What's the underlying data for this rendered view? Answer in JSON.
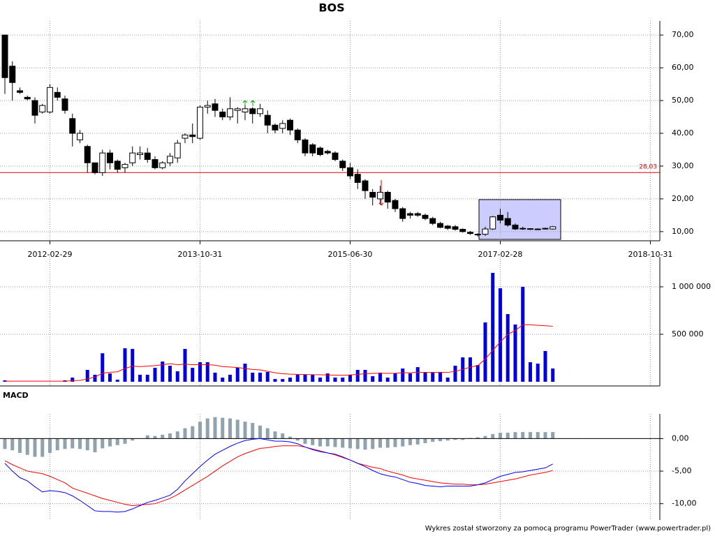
{
  "chart_data": [
    {
      "type": "candlestick",
      "title": "BOS",
      "open": [
        70,
        60.5,
        53,
        51,
        50,
        46.5,
        46.5,
        52.5,
        50.5,
        44.5,
        38,
        36,
        31,
        28,
        34,
        31.5,
        29.5,
        31,
        33.5,
        34,
        32,
        29.5,
        31,
        32.5,
        38.5,
        39.5,
        38.5,
        48,
        49,
        46.5,
        45,
        47,
        46.5,
        47.5,
        46,
        45.5,
        42.5,
        41.5,
        44,
        41,
        38,
        36.5,
        35.5,
        34.5,
        34,
        31.5,
        29.5,
        27.5,
        25.5,
        22,
        20,
        22,
        19.5,
        17,
        15.5,
        15.5,
        15,
        14,
        12.5,
        11.7,
        11.5,
        10.7,
        9.8,
        9.1,
        9.2,
        10.8,
        15,
        14,
        12,
        11,
        10.8,
        10.8,
        10.9,
        10.8
      ],
      "high": [
        70,
        62,
        54,
        51.5,
        51,
        49,
        55,
        54,
        51.5,
        46,
        41,
        36.5,
        31,
        35,
        35,
        32,
        31,
        36,
        36,
        35.5,
        33,
        31.5,
        34,
        38,
        40,
        43,
        48.5,
        50,
        50.5,
        47.5,
        51,
        48,
        48.5,
        48,
        49,
        47,
        43,
        44,
        44.5,
        41.5,
        38.5,
        37,
        36,
        35,
        34.5,
        32,
        31,
        29,
        26,
        23,
        24,
        22.5,
        20,
        17.5,
        16,
        16,
        15.5,
        14.5,
        13,
        12,
        12,
        11,
        10.2,
        9.5,
        11.5,
        14.8,
        17,
        16,
        12.5,
        11.5,
        11,
        11,
        11.2,
        11.7
      ],
      "low": [
        52,
        50,
        52,
        50,
        43,
        46,
        46,
        50,
        46,
        36,
        37,
        28,
        27.5,
        27,
        29,
        28,
        28,
        30,
        32,
        31,
        29,
        29,
        30,
        31,
        37,
        37,
        38,
        46,
        45,
        44,
        44,
        43,
        44,
        43,
        45,
        40,
        40,
        40,
        39.5,
        37,
        33,
        33,
        33,
        33.5,
        31.5,
        28.5,
        26,
        23,
        20,
        18,
        18.5,
        17,
        16,
        13,
        14,
        14.5,
        13.5,
        12,
        11,
        10.5,
        10.3,
        9.7,
        9,
        8.5,
        8.7,
        10.5,
        12.5,
        11.5,
        10.5,
        10.5,
        10.5,
        10.5,
        10.6,
        10.6
      ],
      "close": [
        57,
        55.5,
        52.5,
        50.5,
        45.5,
        48.5,
        54,
        51,
        47,
        40,
        40,
        31,
        28,
        34,
        31,
        29,
        30.5,
        34,
        34,
        32,
        29.5,
        31,
        33,
        37,
        39.5,
        39,
        48,
        48.5,
        47,
        45,
        47.5,
        47.5,
        47.5,
        46,
        47.5,
        42.5,
        41,
        43,
        41,
        38,
        34,
        34,
        33.5,
        34,
        32,
        29.5,
        27,
        25,
        22.5,
        20.5,
        22,
        19,
        17,
        14,
        15,
        15,
        14,
        12.5,
        11.3,
        11,
        10.7,
        10,
        9.4,
        9.2,
        10.8,
        14.5,
        13.5,
        12,
        10.8,
        11,
        10.9,
        10.7,
        11,
        11.5
      ],
      "xlim": [
        -0.65,
        87.26
      ],
      "xticks": [
        {
          "value": 6,
          "label": "2012-02-29"
        },
        {
          "value": 26,
          "label": "2013-10-31"
        },
        {
          "value": 46,
          "label": "2015-06-30"
        },
        {
          "value": 66,
          "label": "2017-02-28"
        },
        {
          "value": 86,
          "label": "2018-10-31"
        }
      ],
      "ylim": [
        7.2,
        74.3
      ],
      "yticks": [
        {
          "value": 10,
          "label": "10,00"
        },
        {
          "value": 20,
          "label": "20,00"
        },
        {
          "value": 30,
          "label": "30,00"
        },
        {
          "value": 40,
          "label": "40,00"
        },
        {
          "value": 50,
          "label": "50,00"
        },
        {
          "value": 60,
          "label": "60,00"
        },
        {
          "value": 70,
          "label": "70,00"
        }
      ],
      "reference_line": {
        "value": 28.03,
        "label": "28,03",
        "color": "#dd0000"
      },
      "up_color": "#ffffff",
      "down_color": "#000000",
      "grid": true
    },
    {
      "type": "bar",
      "values": [
        15000,
        0,
        0,
        0,
        0,
        0,
        0,
        0,
        15000,
        44000,
        0,
        125000,
        74000,
        300000,
        88000,
        22000,
        353000,
        346000,
        74000,
        74000,
        147000,
        213000,
        169000,
        110000,
        346000,
        147000,
        206000,
        206000,
        96000,
        44000,
        74000,
        147000,
        191000,
        96000,
        96000,
        103000,
        29000,
        29000,
        44000,
        74000,
        74000,
        74000,
        44000,
        88000,
        44000,
        44000,
        74000,
        125000,
        125000,
        59000,
        96000,
        44000,
        88000,
        140000,
        88000,
        154000,
        103000,
        103000,
        103000,
        44000,
        169000,
        257000,
        257000,
        176000,
        625000,
        1147000,
        985000,
        713000,
        603000,
        1000000,
        206000,
        191000,
        324000,
        140000
      ],
      "average": [
        7000,
        7000,
        7000,
        7000,
        7000,
        7000,
        7000,
        7000,
        7000,
        12000,
        15000,
        30000,
        50000,
        90000,
        100000,
        105000,
        140000,
        165000,
        160000,
        165000,
        170000,
        180000,
        190000,
        180000,
        185000,
        180000,
        180000,
        180000,
        175000,
        160000,
        155000,
        150000,
        140000,
        130000,
        125000,
        110000,
        95000,
        85000,
        80000,
        78000,
        76000,
        75000,
        74000,
        72000,
        70000,
        68000,
        72000,
        78000,
        85000,
        88000,
        90000,
        88000,
        90000,
        95000,
        95000,
        100000,
        98000,
        98000,
        100000,
        98000,
        110000,
        130000,
        155000,
        170000,
        240000,
        330000,
        420000,
        500000,
        540000,
        600000,
        600000,
        595000,
        590000,
        585000
      ],
      "color": "#0000e0",
      "average_color": "#ff0000",
      "ylim": [
        -44000,
        1316000
      ],
      "yticks": [
        {
          "value": 500000,
          "label": "500 000"
        },
        {
          "value": 1000000,
          "label": "1 000 000"
        }
      ],
      "grid": true
    },
    {
      "type": "macd",
      "title": "MACD",
      "histogram": [
        -1.6,
        -1.8,
        -2.2,
        -2.5,
        -2.8,
        -2.8,
        -2.2,
        -1.8,
        -1.6,
        -1.5,
        -1.6,
        -1.8,
        -2.1,
        -1.5,
        -1.2,
        -1.0,
        -0.8,
        -0.3,
        0,
        0.5,
        0.4,
        0.6,
        0.8,
        1.1,
        1.6,
        1.9,
        2.6,
        3.1,
        3.3,
        3.2,
        3.1,
        2.9,
        2.6,
        2.4,
        2.0,
        1.6,
        1.1,
        0.8,
        0.3,
        -0.3,
        -0.8,
        -1.0,
        -1.2,
        -1.2,
        -1.3,
        -1.4,
        -1.5,
        -1.6,
        -1.7,
        -1.6,
        -1.4,
        -1.4,
        -1.3,
        -1.2,
        -1.0,
        -0.9,
        -0.7,
        -0.5,
        -0.4,
        -0.3,
        -0.2,
        -0.2,
        0.1,
        0.2,
        0.4,
        0.7,
        0.9,
        0.9,
        1.0,
        1.0,
        1.0,
        1.0,
        1.0,
        1.0
      ],
      "macd": [
        -3.8,
        -5.0,
        -6.0,
        -6.5,
        -7.4,
        -8.2,
        -8.0,
        -8.1,
        -8.3,
        -8.8,
        -9.5,
        -10.3,
        -11.1,
        -11.2,
        -11.2,
        -11.3,
        -11.2,
        -10.8,
        -10.3,
        -9.8,
        -9.5,
        -9.1,
        -8.7,
        -7.8,
        -6.5,
        -5.4,
        -4.3,
        -3.3,
        -2.4,
        -1.8,
        -1.2,
        -0.7,
        -0.3,
        -0.1,
        0,
        -0.2,
        -0.4,
        -0.4,
        -0.5,
        -0.8,
        -1.3,
        -1.7,
        -2.0,
        -2.2,
        -2.4,
        -2.8,
        -3.3,
        -3.8,
        -4.3,
        -4.9,
        -5.4,
        -5.7,
        -5.9,
        -6.3,
        -6.7,
        -6.9,
        -7.2,
        -7.3,
        -7.4,
        -7.3,
        -7.3,
        -7.3,
        -7.3,
        -7.1,
        -6.8,
        -6.3,
        -5.8,
        -5.5,
        -5.2,
        -5.1,
        -4.9,
        -4.7,
        -4.5,
        -3.9
      ],
      "signal": [
        -3.4,
        -4.0,
        -4.5,
        -5.0,
        -5.2,
        -5.4,
        -5.8,
        -6.3,
        -6.8,
        -7.6,
        -8.0,
        -8.4,
        -8.8,
        -9.2,
        -9.5,
        -9.8,
        -10.1,
        -10.3,
        -10.2,
        -10.1,
        -10.0,
        -9.6,
        -9.2,
        -8.6,
        -7.9,
        -7.2,
        -6.5,
        -5.8,
        -5.0,
        -4.2,
        -3.5,
        -2.8,
        -2.3,
        -1.9,
        -1.5,
        -1.4,
        -1.2,
        -1.1,
        -1.1,
        -1.1,
        -1.3,
        -1.6,
        -1.9,
        -2.2,
        -2.5,
        -2.9,
        -3.3,
        -3.8,
        -4.1,
        -4.4,
        -4.6,
        -5.0,
        -5.3,
        -5.6,
        -6.0,
        -6.2,
        -6.4,
        -6.6,
        -6.8,
        -6.9,
        -7.0,
        -7.0,
        -7.1,
        -7.1,
        -7.0,
        -6.8,
        -6.6,
        -6.4,
        -6.2,
        -5.9,
        -5.6,
        -5.4,
        -5.2,
        -4.9
      ],
      "histogram_color": "#8fa2ad",
      "macd_color": "#0000ff",
      "signal_color": "#ff0000",
      "ylim": [
        -12.5,
        3.8
      ],
      "yticks": [
        {
          "value": -10,
          "label": "-10,00"
        },
        {
          "value": -5,
          "label": "-5,00"
        },
        {
          "value": 0,
          "label": "0,00"
        }
      ],
      "grid": true
    }
  ],
  "footer": "Wykres został stworzony za pomocą programu PowerTrader (www.powertrader.pl)"
}
